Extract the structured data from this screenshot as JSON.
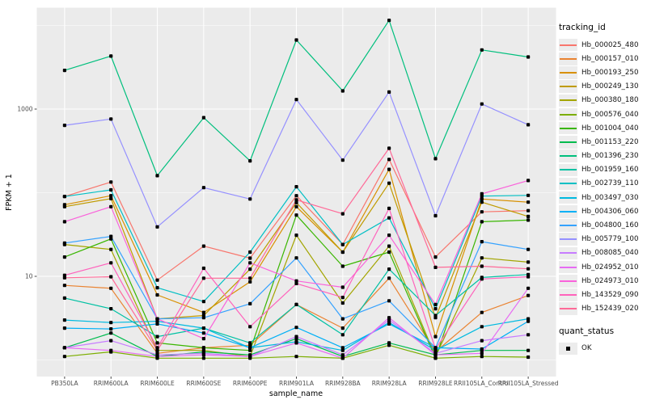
{
  "figure": {
    "background": "#FFFFFF",
    "panel_background": "#EBEBEB",
    "grid_color": "#FFFFFF",
    "tick_color": "#333333",
    "tick_label_color": "#4D4D4D",
    "point_color": "#000000",
    "legend_key_background": "#ECECEC"
  },
  "legends": {
    "tracking": {
      "title": "tracking_id"
    },
    "quant": {
      "title": "quant_status",
      "items": [
        "OK"
      ]
    }
  },
  "chart_data": {
    "type": "line",
    "title": "",
    "xlabel": "sample_name",
    "ylabel": "FPKM + 1",
    "y_scale": "log10",
    "legend_position": "right",
    "point_marker": "black-square",
    "grid": true,
    "y_ticks": [
      {
        "value": 1000,
        "label": "1000"
      },
      {
        "value": 10,
        "label": "10"
      }
    ],
    "y_major_gridlines": [
      10,
      1000
    ],
    "y_minor_gridlines": [
      1,
      100,
      10000
    ],
    "ylim": [
      0.63,
      16000
    ],
    "categories": [
      "PB350LA",
      "RRIM600LA",
      "RRIM600LE",
      "RRIM600SE",
      "RRIM600PE",
      "RRIM901LA",
      "RRIM928BA",
      "RRIM928LA",
      "RRIM928LE",
      "RRII105LA_Control",
      "RRII105LA_Stressed"
    ],
    "series": [
      {
        "name": "Hb_000025_480",
        "color": "#F8766D",
        "values": [
          90,
          134,
          9.0,
          23,
          16.5,
          92,
          24,
          250,
          17,
          59,
          61
        ]
      },
      {
        "name": "Hb_000157_010",
        "color": "#EA8331",
        "values": [
          7.8,
          7.2,
          1.2,
          1.4,
          1.5,
          4.6,
          2.4,
          9.5,
          1.25,
          3.7,
          5.9
        ]
      },
      {
        "name": "Hb_000193_250",
        "color": "#D89000",
        "values": [
          72,
          92,
          6.0,
          3.7,
          8.6,
          68,
          19.5,
          190,
          1.9,
          84,
          77
        ]
      },
      {
        "name": "Hb_000249_130",
        "color": "#C09B00",
        "values": [
          68,
          85,
          3.1,
          3.4,
          12.2,
          76,
          19.5,
          130,
          3.2,
          77,
          52
        ]
      },
      {
        "name": "Hb_000380_180",
        "color": "#A3A500",
        "values": [
          24,
          21,
          1.3,
          1.3,
          1.1,
          31,
          4.8,
          23,
          1.1,
          16.6,
          14.8
        ]
      },
      {
        "name": "Hb_000576_040",
        "color": "#7CAE00",
        "values": [
          1.1,
          1.25,
          1.05,
          1.05,
          1.05,
          1.1,
          1.05,
          1.5,
          1.05,
          1.1,
          1.08
        ]
      },
      {
        "name": "Hb_001004_040",
        "color": "#39B600",
        "values": [
          17,
          28,
          1.6,
          1.4,
          1.3,
          54,
          13.2,
          19.5,
          1.05,
          45,
          47
        ]
      },
      {
        "name": "Hb_001153_220",
        "color": "#00BB4E",
        "values": [
          1.4,
          2.1,
          1.1,
          1.25,
          1.15,
          1.8,
          1.1,
          1.6,
          1.15,
          1.3,
          1.3
        ]
      },
      {
        "name": "Hb_001396_230",
        "color": "#00BF7D",
        "values": [
          2900,
          4300,
          160,
          790,
          240,
          6700,
          1650,
          11500,
          255,
          5100,
          4200
        ]
      },
      {
        "name": "Hb_001959_160",
        "color": "#00C1A3",
        "values": [
          5.5,
          4.1,
          1.9,
          2.4,
          1.6,
          4.6,
          2.0,
          12.2,
          3.4,
          9.7,
          10.5
        ]
      },
      {
        "name": "Hb_002739_110",
        "color": "#00BFC4",
        "values": [
          90,
          108,
          7.3,
          5.0,
          19.5,
          118,
          24,
          50,
          4.1,
          91,
          93
        ]
      },
      {
        "name": "Hb_003497_030",
        "color": "#00BAE0",
        "values": [
          3.0,
          2.8,
          2.9,
          2.4,
          1.4,
          1.65,
          1.3,
          2.8,
          1.3,
          2.5,
          3.1
        ]
      },
      {
        "name": "Hb_004306_060",
        "color": "#00B0F6",
        "values": [
          2.4,
          2.35,
          2.7,
          2.1,
          1.4,
          2.45,
          1.4,
          2.7,
          1.4,
          1.35,
          2.9
        ]
      },
      {
        "name": "Hb_004800_160",
        "color": "#35A2FF",
        "values": [
          25,
          30,
          3.1,
          3.2,
          4.7,
          16.6,
          3.1,
          5.1,
          1.4,
          26,
          21
        ]
      },
      {
        "name": "Hb_005779_100",
        "color": "#9590FF",
        "values": [
          640,
          760,
          39,
          115,
          84,
          1300,
          245,
          1600,
          53,
          1150,
          650
        ]
      },
      {
        "name": "Hb_008085_040",
        "color": "#C77CFF",
        "values": [
          1.4,
          1.7,
          1.15,
          1.2,
          1.1,
          1.9,
          1.15,
          3.0,
          1.2,
          1.7,
          2.0
        ]
      },
      {
        "name": "Hb_024952_010",
        "color": "#E76BF3",
        "values": [
          1.4,
          1.3,
          1.1,
          1.15,
          1.1,
          1.6,
          1.05,
          3.2,
          1.15,
          1.2,
          7.2
        ]
      },
      {
        "name": "Hb_024973_010",
        "color": "#FA62DB",
        "values": [
          45,
          68,
          3.1,
          1.8,
          14.5,
          8.8,
          7.4,
          31,
          4.6,
          97,
          140
        ]
      },
      {
        "name": "Hb_143529_090",
        "color": "#FF62BC",
        "values": [
          10.3,
          14.5,
          1.4,
          12.5,
          2.5,
          8.2,
          5.6,
          65,
          1.35,
          9.3,
          9.9
        ]
      },
      {
        "name": "Hb_152439_020",
        "color": "#FF6A98",
        "values": [
          9.6,
          9.9,
          1.3,
          9.5,
          9.5,
          82,
          56,
          340,
          12.8,
          13.2,
          12.3
        ]
      }
    ]
  }
}
